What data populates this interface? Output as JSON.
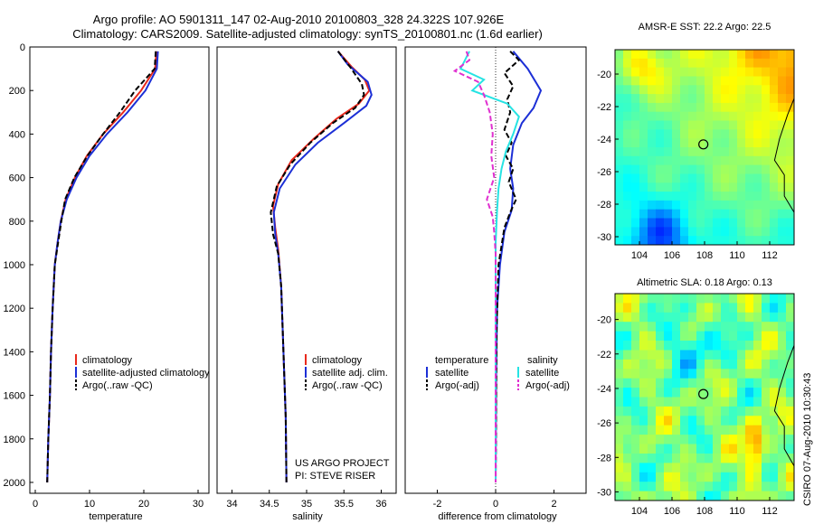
{
  "header": {
    "line1": "Argo profile: AO 5901311_147 02-Aug-2010 20100803_328 24.322S 107.926E",
    "line2": "Climatology: CARS2009. Satellite-adjusted climatology: synTS_20100801.nc (1.6d earlier)"
  },
  "credit": {
    "project": "US ARGO PROJECT",
    "pi": "PI: STEVE RISER",
    "side": "CSIRO 07-Aug-2010 10:30:43"
  },
  "colors": {
    "climatology": "#e8291c",
    "satellite": "#1c2fd6",
    "argo": "#000000",
    "sat_diff_salinity": "#26e3e3",
    "argo_diff_salinity": "#e030d0"
  },
  "chart_data": [
    {
      "type": "line",
      "xlabel": "temperature",
      "xlim": [
        -1,
        32
      ],
      "ylim": [
        2050,
        0
      ],
      "xticks": [
        0,
        10,
        20,
        30
      ],
      "yticks": [
        0,
        200,
        400,
        600,
        800,
        1000,
        1200,
        1400,
        1600,
        1800,
        2000
      ],
      "legend": [
        "climatology",
        "satellite-adjusted climatology",
        "Argo(..raw -QC)"
      ],
      "series": [
        {
          "name": "climatology",
          "color": "#e8291c",
          "dash": false,
          "points": [
            [
              22.3,
              20
            ],
            [
              22.1,
              100
            ],
            [
              19.5,
              200
            ],
            [
              16.2,
              300
            ],
            [
              12.5,
              400
            ],
            [
              9.5,
              500
            ],
            [
              7.3,
              600
            ],
            [
              5.6,
              700
            ],
            [
              4.7,
              800
            ],
            [
              4.1,
              900
            ],
            [
              3.6,
              1000
            ],
            [
              3.2,
              1200
            ],
            [
              2.9,
              1400
            ],
            [
              2.7,
              1600
            ],
            [
              2.4,
              1800
            ],
            [
              2.2,
              2000
            ]
          ]
        },
        {
          "name": "satellite-adjusted climatology",
          "color": "#1c2fd6",
          "dash": false,
          "points": [
            [
              22.6,
              20
            ],
            [
              22.4,
              100
            ],
            [
              20.3,
              200
            ],
            [
              17.0,
              300
            ],
            [
              13.2,
              400
            ],
            [
              10.0,
              500
            ],
            [
              7.6,
              600
            ],
            [
              5.8,
              700
            ],
            [
              4.7,
              800
            ],
            [
              4.1,
              900
            ],
            [
              3.6,
              1000
            ],
            [
              3.2,
              1200
            ],
            [
              2.9,
              1400
            ],
            [
              2.7,
              1600
            ],
            [
              2.4,
              1800
            ],
            [
              2.2,
              2000
            ]
          ]
        },
        {
          "name": "Argo(..raw -QC)",
          "color": "#000000",
          "dash": true,
          "points": [
            [
              22.2,
              20
            ],
            [
              22.0,
              100
            ],
            [
              18.4,
              200
            ],
            [
              15.6,
              300
            ],
            [
              12.5,
              400
            ],
            [
              9.6,
              500
            ],
            [
              7.2,
              600
            ],
            [
              5.5,
              700
            ],
            [
              4.8,
              800
            ],
            [
              4.2,
              900
            ],
            [
              3.6,
              1000
            ],
            [
              3.2,
              1200
            ],
            [
              2.9,
              1400
            ],
            [
              2.7,
              1600
            ],
            [
              2.4,
              1800
            ],
            [
              2.2,
              2000
            ]
          ]
        }
      ]
    },
    {
      "type": "line",
      "xlabel": "salinity",
      "xlim": [
        33.8,
        36.2
      ],
      "ylim": [
        2050,
        0
      ],
      "xticks": [
        34,
        34.5,
        35,
        35.5,
        36
      ],
      "legend": [
        "climatology",
        "satellite adj. clim.",
        "Argo(..raw -QC)"
      ],
      "series": [
        {
          "name": "climatology",
          "color": "#e8291c",
          "dash": false,
          "points": [
            [
              35.42,
              20
            ],
            [
              35.6,
              90
            ],
            [
              35.78,
              150
            ],
            [
              35.84,
              200
            ],
            [
              35.7,
              260
            ],
            [
              35.4,
              330
            ],
            [
              35.1,
              420
            ],
            [
              34.8,
              520
            ],
            [
              34.62,
              630
            ],
            [
              34.55,
              730
            ],
            [
              34.58,
              830
            ],
            [
              34.62,
              930
            ],
            [
              34.66,
              1100
            ],
            [
              34.69,
              1400
            ],
            [
              34.72,
              1700
            ],
            [
              34.73,
              2000
            ]
          ]
        },
        {
          "name": "satellite adj. clim.",
          "color": "#1c2fd6",
          "dash": false,
          "points": [
            [
              35.42,
              20
            ],
            [
              35.55,
              80
            ],
            [
              35.82,
              160
            ],
            [
              35.87,
              220
            ],
            [
              35.8,
              270
            ],
            [
              35.5,
              350
            ],
            [
              35.15,
              440
            ],
            [
              34.85,
              540
            ],
            [
              34.64,
              650
            ],
            [
              34.56,
              760
            ],
            [
              34.58,
              860
            ],
            [
              34.62,
              950
            ],
            [
              34.66,
              1100
            ],
            [
              34.69,
              1400
            ],
            [
              34.72,
              1700
            ],
            [
              34.73,
              2000
            ]
          ]
        },
        {
          "name": "Argo(..raw -QC)",
          "color": "#000000",
          "dash": true,
          "points": [
            [
              35.42,
              20
            ],
            [
              35.58,
              90
            ],
            [
              35.74,
              170
            ],
            [
              35.77,
              220
            ],
            [
              35.65,
              280
            ],
            [
              35.35,
              350
            ],
            [
              35.05,
              440
            ],
            [
              34.78,
              540
            ],
            [
              34.6,
              640
            ],
            [
              34.52,
              760
            ],
            [
              34.55,
              860
            ],
            [
              34.62,
              950
            ],
            [
              34.66,
              1100
            ],
            [
              34.69,
              1400
            ],
            [
              34.72,
              1700
            ],
            [
              34.73,
              2000
            ]
          ]
        }
      ]
    },
    {
      "type": "line",
      "xlabel": "difference from climatology",
      "xlim": [
        -3.1,
        3.1
      ],
      "ylim": [
        2050,
        0
      ],
      "xticks": [
        -2,
        0,
        2
      ],
      "legend_left_title": "temperature",
      "legend_right_title": "salinity",
      "legend": [
        "satellite",
        "Argo(-adj)",
        "satellite",
        "Argo(-adj)"
      ],
      "series": [
        {
          "name": "satellite",
          "quantity": "temperature",
          "color": "#1c2fd6",
          "dash": false,
          "points": [
            [
              0.6,
              20
            ],
            [
              1.1,
              100
            ],
            [
              1.55,
              200
            ],
            [
              1.3,
              280
            ],
            [
              0.9,
              350
            ],
            [
              0.6,
              450
            ],
            [
              0.5,
              560
            ],
            [
              0.6,
              650
            ],
            [
              0.55,
              750
            ],
            [
              0.3,
              850
            ],
            [
              0.15,
              1000
            ],
            [
              0.05,
              1200
            ],
            [
              0.02,
              1500
            ],
            [
              0.0,
              2000
            ]
          ]
        },
        {
          "name": "Argo(-adj)",
          "quantity": "temperature",
          "color": "#000000",
          "dash": true,
          "points": [
            [
              0.5,
              20
            ],
            [
              0.8,
              60
            ],
            [
              0.3,
              120
            ],
            [
              0.6,
              180
            ],
            [
              0.4,
              240
            ],
            [
              0.5,
              300
            ],
            [
              0.3,
              380
            ],
            [
              0.55,
              440
            ],
            [
              0.35,
              500
            ],
            [
              0.6,
              560
            ],
            [
              0.45,
              620
            ],
            [
              0.7,
              700
            ],
            [
              0.5,
              760
            ],
            [
              0.3,
              830
            ],
            [
              0.1,
              1000
            ],
            [
              0.03,
              1300
            ],
            [
              0.0,
              2000
            ]
          ]
        },
        {
          "name": "satellite",
          "quantity": "salinity",
          "color": "#26e3e3",
          "dash": false,
          "points": [
            [
              -0.9,
              20
            ],
            [
              -1.2,
              100
            ],
            [
              -0.4,
              150
            ],
            [
              -0.8,
              200
            ],
            [
              0.4,
              260
            ],
            [
              0.8,
              320
            ],
            [
              0.6,
              400
            ],
            [
              0.35,
              480
            ],
            [
              0.2,
              560
            ],
            [
              0.1,
              650
            ],
            [
              0.05,
              750
            ],
            [
              0.0,
              900
            ],
            [
              0.0,
              1100
            ],
            [
              0.0,
              1400
            ],
            [
              0.0,
              2000
            ]
          ]
        },
        {
          "name": "Argo(-adj)",
          "quantity": "salinity",
          "color": "#e030d0",
          "dash": true,
          "points": [
            [
              -1.0,
              20
            ],
            [
              -0.9,
              60
            ],
            [
              -1.4,
              110
            ],
            [
              -0.6,
              160
            ],
            [
              -0.4,
              220
            ],
            [
              -0.2,
              300
            ],
            [
              -0.1,
              400
            ],
            [
              -0.15,
              500
            ],
            [
              -0.05,
              600
            ],
            [
              -0.3,
              700
            ],
            [
              -0.1,
              780
            ],
            [
              -0.05,
              850
            ],
            [
              0.0,
              950
            ],
            [
              0.0,
              2000
            ]
          ]
        }
      ]
    },
    {
      "type": "heatmap",
      "title": "AMSR-E SST: 22.2 Argo: 22.5",
      "xlim": [
        102.5,
        113.5
      ],
      "ylim": [
        -30.5,
        -18.5
      ],
      "xticks": [
        104,
        106,
        108,
        110,
        112
      ],
      "yticks": [
        -20,
        -22,
        -24,
        -26,
        -28,
        -30
      ],
      "argo_location": [
        107.926,
        -24.322
      ]
    },
    {
      "type": "heatmap",
      "title": "Altimetric SLA: 0.18 Argo: 0.13",
      "xlim": [
        102.5,
        113.5
      ],
      "ylim": [
        -30.5,
        -18.5
      ],
      "xticks": [
        104,
        106,
        108,
        110,
        112
      ],
      "yticks": [
        -20,
        -22,
        -24,
        -26,
        -28,
        -30
      ],
      "argo_location": [
        107.926,
        -24.322
      ]
    }
  ]
}
